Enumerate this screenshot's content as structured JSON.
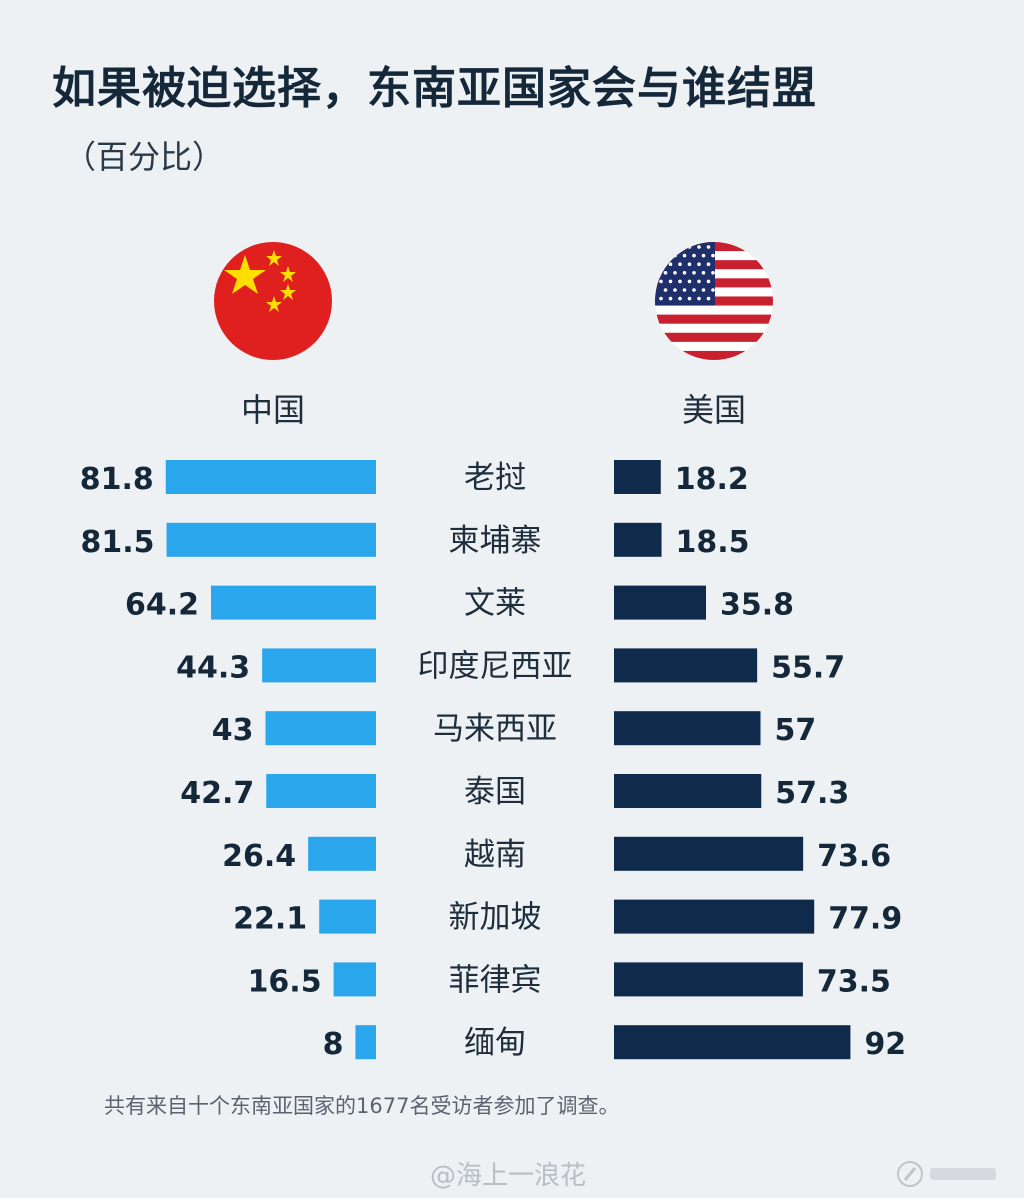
{
  "chart_data": {
    "type": "bar",
    "title": "如果被迫选择，东南亚国家会与谁结盟",
    "subtitle": "（百分比）",
    "categories": [
      "老挝",
      "柬埔寨",
      "文莱",
      "印度尼西亚",
      "马来西亚",
      "泰国",
      "越南",
      "新加坡",
      "菲律宾",
      "缅甸"
    ],
    "series": [
      {
        "name": "中国",
        "color": "#2aa6ec",
        "values": [
          81.8,
          81.5,
          64.2,
          44.3,
          43,
          42.7,
          26.4,
          22.1,
          16.5,
          8
        ]
      },
      {
        "name": "美国",
        "color": "#0f2a4a",
        "values": [
          18.2,
          18.5,
          35.8,
          55.7,
          57,
          57.3,
          73.6,
          77.9,
          73.5,
          92
        ]
      }
    ],
    "value_labels": {
      "中国": [
        "81.8",
        "81.5",
        "64.2",
        "44.3",
        "43",
        "42.7",
        "26.4",
        "22.1",
        "16.5",
        "8"
      ],
      "美国": [
        "18.2",
        "18.5",
        "35.8",
        "55.7",
        "57",
        "57.3",
        "73.6",
        "77.9",
        "73.5",
        "92"
      ]
    },
    "xlim": [
      0,
      100
    ],
    "layout": "butterfly",
    "legend": "flags-top"
  },
  "footnote": "共有来自十个东南亚国家的1677名受访者参加了调查。",
  "watermark": "@海上一浪花",
  "flags": {
    "cn": "china-flag-icon",
    "us": "usa-flag-icon"
  }
}
